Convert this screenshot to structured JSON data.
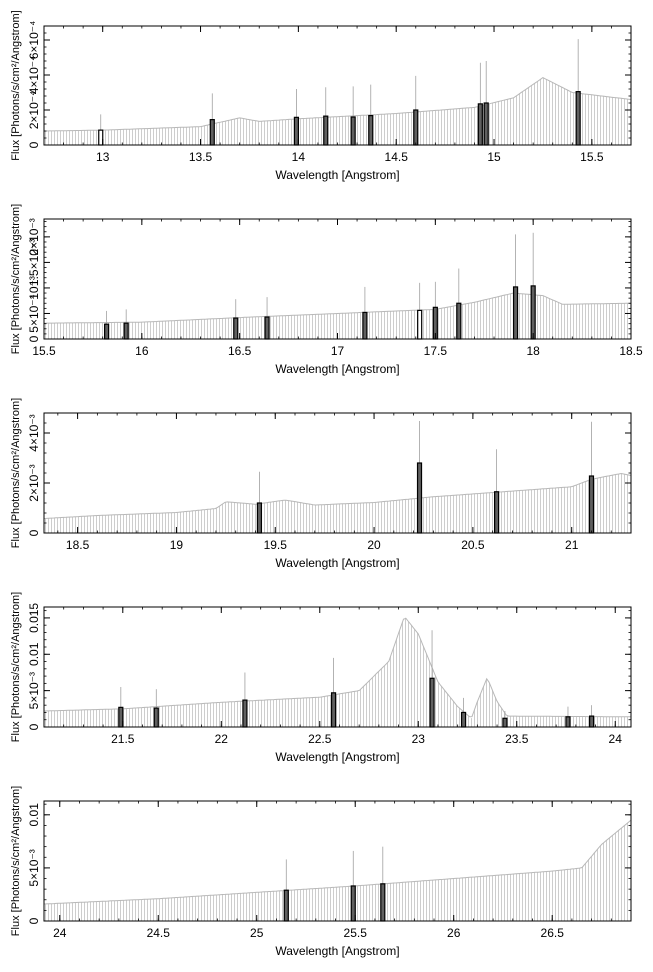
{
  "chart_data": [
    {
      "type": "bar",
      "xlabel": "Wavelength [Angstrom]",
      "ylabel": "Flux [Photons/s/cm²/Angstrom]",
      "xlim": [
        12.7,
        15.7
      ],
      "ylim": [
        0,
        0.00068
      ],
      "x_ticks": [
        13,
        13.5,
        14,
        14.5,
        15,
        15.5
      ],
      "x_tick_labels": [
        "13",
        "13.5",
        "14",
        "14.5",
        "15",
        "15.5"
      ],
      "y_ticks": [
        0,
        0.0002,
        0.0004,
        0.0006
      ],
      "y_tick_labels": [
        "0",
        "2×10⁻⁴",
        "4×10⁻⁴",
        "6×10⁻⁴"
      ],
      "continuum": [
        [
          12.7,
          8e-05
        ],
        [
          13.0,
          8.5e-05
        ],
        [
          13.5,
          0.000105
        ],
        [
          13.7,
          0.000155
        ],
        [
          13.8,
          0.000135
        ],
        [
          14.0,
          0.00015
        ],
        [
          14.5,
          0.00018
        ],
        [
          14.9,
          0.000215
        ],
        [
          15.1,
          0.00027
        ],
        [
          15.25,
          0.000385
        ],
        [
          15.4,
          0.0003
        ],
        [
          15.7,
          0.00026
        ]
      ],
      "lines": [
        {
          "x": 12.99,
          "peak": 8.5e-05,
          "upper": 0.000175,
          "hollow": true
        },
        {
          "x": 13.56,
          "peak": 0.000145,
          "upper": 0.000295,
          "hollow": false
        },
        {
          "x": 13.99,
          "peak": 0.000158,
          "upper": 0.00032,
          "hollow": false
        },
        {
          "x": 14.14,
          "peak": 0.000165,
          "upper": 0.00033,
          "hollow": false
        },
        {
          "x": 14.28,
          "peak": 0.00016,
          "upper": 0.000335,
          "hollow": false
        },
        {
          "x": 14.37,
          "peak": 0.000168,
          "upper": 0.000345,
          "hollow": false
        },
        {
          "x": 14.6,
          "peak": 0.0002,
          "upper": 0.000395,
          "hollow": false
        },
        {
          "x": 14.93,
          "peak": 0.000235,
          "upper": 0.00047,
          "hollow": false
        },
        {
          "x": 14.96,
          "peak": 0.00024,
          "upper": 0.00048,
          "hollow": false
        },
        {
          "x": 15.43,
          "peak": 0.000305,
          "upper": 0.000605,
          "hollow": false
        }
      ]
    },
    {
      "type": "bar",
      "xlabel": "Wavelength [Angstrom]",
      "ylabel": "Flux [Photons/s/cm²/Angstrom]",
      "xlim": [
        15.5,
        18.5
      ],
      "ylim": [
        0,
        0.00235
      ],
      "x_ticks": [
        15.5,
        16,
        16.5,
        17,
        17.5,
        18,
        18.5
      ],
      "x_tick_labels": [
        "15.5",
        "16",
        "16.5",
        "17",
        "17.5",
        "18",
        "18.5"
      ],
      "y_ticks": [
        0,
        0.0005,
        0.001,
        0.0015,
        0.002
      ],
      "y_tick_labels": [
        "0",
        "5×10⁻⁴",
        "10⁻³",
        "1.5×10⁻³",
        "2×10⁻³"
      ],
      "continuum": [
        [
          15.5,
          0.00031
        ],
        [
          16.0,
          0.00033
        ],
        [
          16.5,
          0.00042
        ],
        [
          17.0,
          0.0005
        ],
        [
          17.5,
          0.00058
        ],
        [
          17.7,
          0.00072
        ],
        [
          17.9,
          0.0009
        ],
        [
          18.05,
          0.00085
        ],
        [
          18.15,
          0.00068
        ],
        [
          18.5,
          0.0007
        ]
      ],
      "lines": [
        {
          "x": 15.82,
          "peak": 0.00029,
          "upper": 0.00055,
          "hollow": false
        },
        {
          "x": 15.92,
          "peak": 0.00031,
          "upper": 0.00058,
          "hollow": false
        },
        {
          "x": 16.48,
          "peak": 0.00041,
          "upper": 0.00078,
          "hollow": false
        },
        {
          "x": 16.64,
          "peak": 0.00043,
          "upper": 0.00082,
          "hollow": false
        },
        {
          "x": 17.14,
          "peak": 0.00052,
          "upper": 0.00102,
          "hollow": false
        },
        {
          "x": 17.42,
          "peak": 0.00056,
          "upper": 0.0011,
          "hollow": true
        },
        {
          "x": 17.5,
          "peak": 0.00062,
          "upper": 0.00112,
          "hollow": false
        },
        {
          "x": 17.62,
          "peak": 0.0007,
          "upper": 0.00138,
          "hollow": false
        },
        {
          "x": 17.91,
          "peak": 0.00102,
          "upper": 0.00205,
          "hollow": false
        },
        {
          "x": 18.0,
          "peak": 0.00104,
          "upper": 0.00208,
          "hollow": false
        }
      ]
    },
    {
      "type": "bar",
      "xlabel": "Wavelength [Angstrom]",
      "ylabel": "Flux [Photons/s/cm²/Angstrom]",
      "xlim": [
        18.33,
        21.3
      ],
      "ylim": [
        0,
        0.0048
      ],
      "x_ticks": [
        18.5,
        19,
        19.5,
        20,
        20.5,
        21
      ],
      "x_tick_labels": [
        "18.5",
        "19",
        "19.5",
        "20",
        "20.5",
        "21"
      ],
      "y_ticks": [
        0,
        0.002,
        0.004
      ],
      "y_tick_labels": [
        "0",
        "2×10⁻³",
        "4×10⁻³"
      ],
      "continuum": [
        [
          18.33,
          0.00058
        ],
        [
          18.6,
          0.0007
        ],
        [
          19.0,
          0.00082
        ],
        [
          19.2,
          0.00098
        ],
        [
          19.25,
          0.00125
        ],
        [
          19.4,
          0.00115
        ],
        [
          19.55,
          0.00132
        ],
        [
          19.7,
          0.00112
        ],
        [
          20.0,
          0.00122
        ],
        [
          20.3,
          0.00145
        ],
        [
          20.6,
          0.00162
        ],
        [
          21.0,
          0.00185
        ],
        [
          21.1,
          0.00215
        ],
        [
          21.25,
          0.00238
        ],
        [
          21.3,
          0.0023
        ]
      ],
      "lines": [
        {
          "x": 19.42,
          "peak": 0.0012,
          "upper": 0.00245,
          "hollow": false
        },
        {
          "x": 20.23,
          "peak": 0.0028,
          "upper": 0.00448,
          "hollow": false
        },
        {
          "x": 20.62,
          "peak": 0.00165,
          "upper": 0.00335,
          "hollow": false
        },
        {
          "x": 21.1,
          "peak": 0.00228,
          "upper": 0.00445,
          "hollow": false
        }
      ]
    },
    {
      "type": "bar",
      "xlabel": "Wavelength [Angstrom]",
      "ylabel": "Flux [Photons/s/cm²/Angstrom]",
      "xlim": [
        21.1,
        24.08
      ],
      "ylim": [
        0,
        0.0165
      ],
      "x_ticks": [
        21.5,
        22,
        22.5,
        23,
        23.5,
        24
      ],
      "x_tick_labels": [
        "21.5",
        "22",
        "22.5",
        "23",
        "23.5",
        "24"
      ],
      "y_ticks": [
        0,
        0.005,
        0.01,
        0.015
      ],
      "y_tick_labels": [
        "0",
        "5×10⁻³",
        "0.01",
        "0.015"
      ],
      "continuum": [
        [
          21.1,
          0.0022
        ],
        [
          21.5,
          0.0025
        ],
        [
          22.0,
          0.0034
        ],
        [
          22.5,
          0.0041
        ],
        [
          22.7,
          0.005
        ],
        [
          22.85,
          0.009
        ],
        [
          22.93,
          0.0152
        ],
        [
          23.0,
          0.0128
        ],
        [
          23.1,
          0.0062
        ],
        [
          23.2,
          0.0028
        ],
        [
          23.27,
          0.0012
        ],
        [
          23.3,
          0.0035
        ],
        [
          23.35,
          0.0068
        ],
        [
          23.4,
          0.0035
        ],
        [
          23.45,
          0.0015
        ],
        [
          24.08,
          0.0014
        ]
      ],
      "lines": [
        {
          "x": 21.49,
          "peak": 0.0027,
          "upper": 0.0055,
          "hollow": false
        },
        {
          "x": 21.67,
          "peak": 0.0026,
          "upper": 0.0052,
          "hollow": false
        },
        {
          "x": 22.12,
          "peak": 0.0037,
          "upper": 0.0075,
          "hollow": false
        },
        {
          "x": 22.57,
          "peak": 0.0047,
          "upper": 0.0095,
          "hollow": false
        },
        {
          "x": 23.07,
          "peak": 0.0067,
          "upper": 0.0133,
          "hollow": false
        },
        {
          "x": 23.23,
          "peak": 0.002,
          "upper": 0.004,
          "hollow": false
        },
        {
          "x": 23.44,
          "peak": 0.0012,
          "upper": 0.0022,
          "hollow": false
        },
        {
          "x": 23.76,
          "peak": 0.0014,
          "upper": 0.0028,
          "hollow": false
        },
        {
          "x": 23.88,
          "peak": 0.0015,
          "upper": 0.003,
          "hollow": false
        }
      ]
    },
    {
      "type": "bar",
      "xlabel": "Wavelength [Angstrom]",
      "ylabel": "Flux [Photons/s/cm²/Angstrom]",
      "xlim": [
        23.92,
        26.9
      ],
      "ylim": [
        0,
        0.0113
      ],
      "x_ticks": [
        24,
        24.5,
        25,
        25.5,
        26,
        26.5
      ],
      "x_tick_labels": [
        "24",
        "24.5",
        "25",
        "25.5",
        "26",
        "26.5"
      ],
      "y_ticks": [
        0,
        0.005,
        0.01
      ],
      "y_tick_labels": [
        "0",
        "5×10⁻³",
        "0.01"
      ],
      "continuum": [
        [
          23.92,
          0.0016
        ],
        [
          24.5,
          0.0021
        ],
        [
          25.0,
          0.0027
        ],
        [
          25.5,
          0.0033
        ],
        [
          26.0,
          0.004
        ],
        [
          26.5,
          0.0047
        ],
        [
          26.65,
          0.005
        ],
        [
          26.75,
          0.0072
        ],
        [
          26.9,
          0.0095
        ]
      ],
      "lines": [
        {
          "x": 25.15,
          "peak": 0.0029,
          "upper": 0.0058,
          "hollow": false
        },
        {
          "x": 25.49,
          "peak": 0.0033,
          "upper": 0.0066,
          "hollow": false
        },
        {
          "x": 25.64,
          "peak": 0.0035,
          "upper": 0.007,
          "hollow": false
        }
      ]
    }
  ]
}
